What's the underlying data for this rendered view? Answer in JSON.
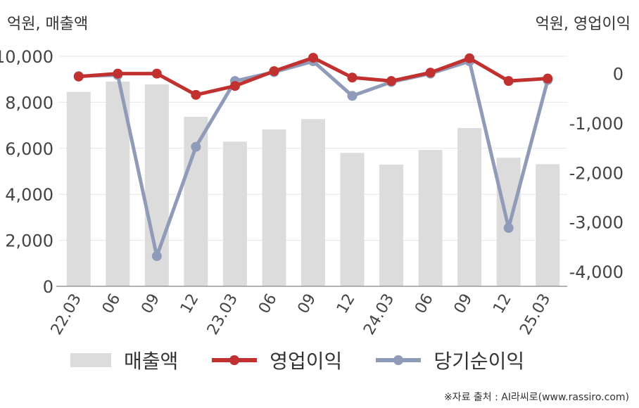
{
  "unit_left": "억원, 매출액",
  "unit_right": "억원, 영업이익",
  "source": "※자료 출처 : AI라씨로(www.rassiro.com)",
  "colors": {
    "revenue": "#dcdcdc",
    "operating_profit": "#c0312f",
    "net_income": "#8f9bb8"
  },
  "chart_data": {
    "type": "bar",
    "categories": [
      "22.03",
      "06",
      "09",
      "12",
      "23.03",
      "06",
      "09",
      "12",
      "24.03",
      "06",
      "09",
      "12",
      "25.03"
    ],
    "left_axis": {
      "ylim": [
        0,
        10000
      ],
      "ticks": [
        0,
        2000,
        4000,
        6000,
        8000,
        10000
      ],
      "tick_labels": [
        "0",
        "2,000",
        "4,000",
        "6,000",
        "8,000",
        "10,000"
      ]
    },
    "right_axis": {
      "ylim": [
        -4300,
        350
      ],
      "ticks": [
        0,
        -1000,
        -2000,
        -3000,
        -4000
      ],
      "tick_labels": [
        "0",
        "-1,000",
        "-2,000",
        "-3,000",
        "-4,000"
      ]
    },
    "grid": true,
    "legend_position": "bottom",
    "series": [
      {
        "name": "매출액",
        "type": "bar",
        "axis": "left",
        "values": [
          8450,
          8900,
          8780,
          7370,
          6290,
          6820,
          7270,
          5800,
          5290,
          5930,
          6880,
          5590,
          5310
        ]
      },
      {
        "name": "영업이익",
        "type": "line",
        "axis": "right",
        "values": [
          -60,
          0,
          0,
          -430,
          -250,
          50,
          320,
          -80,
          -150,
          20,
          310,
          -150,
          -100
        ]
      },
      {
        "name": "당기순이익",
        "type": "line",
        "axis": "right",
        "values": [
          -50,
          -30,
          -3690,
          -1480,
          -150,
          30,
          250,
          -450,
          -170,
          0,
          250,
          -3120,
          -130
        ]
      }
    ]
  }
}
